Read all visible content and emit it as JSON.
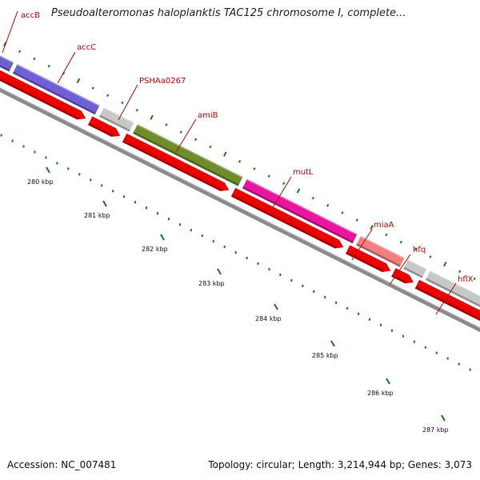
{
  "title": "Pseudoalteromonas haloplanktis TAC125 chromosome I, complete...",
  "footer": {
    "accession": "Accession: NC_007481",
    "summary": "Topology: circular; Length: 3,214,944 bp; Genes: 3,073"
  },
  "colors": {
    "label": "#cc0000",
    "cds": "#ee0000",
    "backbone": "#8a8a8a",
    "tick": "#1a7a1a"
  },
  "genes": [
    {
      "name": "accB",
      "color": "#6f5fd0"
    },
    {
      "name": "accC",
      "color": "#7060d8"
    },
    {
      "name": "PSHAa0267",
      "color": "#c8c8c8"
    },
    {
      "name": "amiB",
      "color": "#6e8c2a"
    },
    {
      "name": "mutL",
      "color": "#e8169e"
    },
    {
      "name": "miaA",
      "color": "#ef8080"
    },
    {
      "name": "hfq",
      "color": "#c8c8c8"
    },
    {
      "name": "hflX",
      "color": "#c8c8c8"
    },
    {
      "name": "",
      "color": "#b5b760"
    }
  ],
  "ruler": [
    "280 kbp",
    "281 kbp",
    "282 kbp",
    "283 kbp",
    "284 kbp",
    "285 kbp",
    "286 kbp",
    "287 kbp"
  ]
}
